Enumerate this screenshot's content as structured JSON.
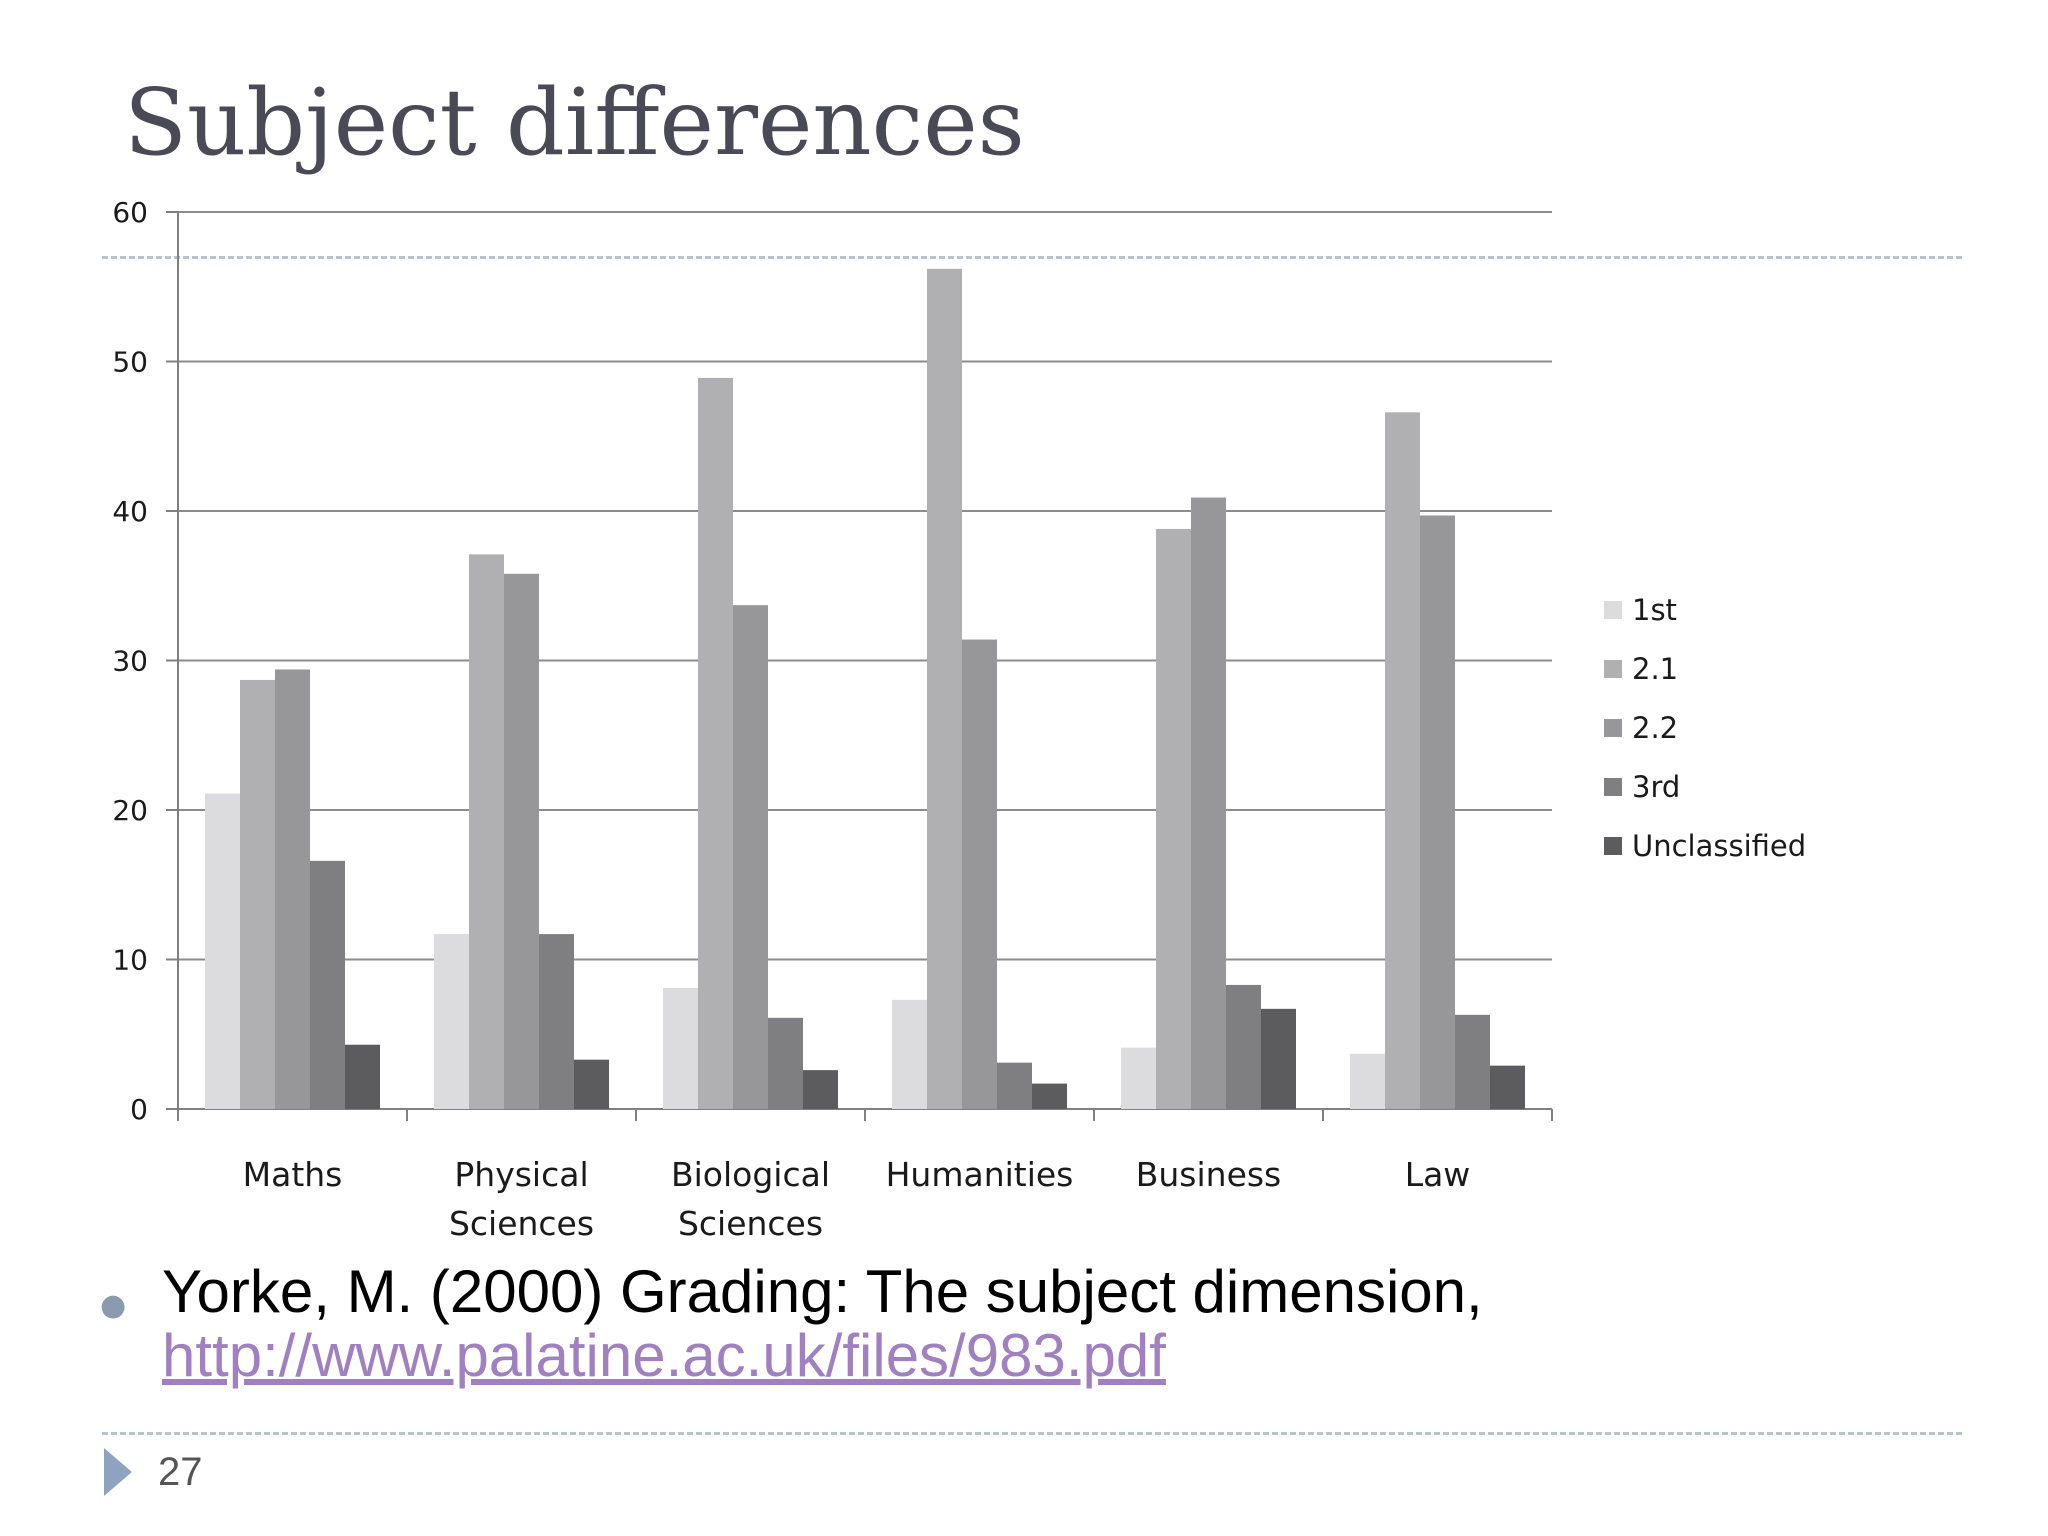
{
  "slide": {
    "title": "Subject differences",
    "page_number": "27"
  },
  "citation": {
    "text": "Yorke, M. (2000) Grading: The subject dimension,",
    "link": "http://www.palatine.ac.uk/files/983.pdf"
  },
  "colors": {
    "series": [
      "#dcdcde",
      "#b0b0b2",
      "#979799",
      "#7f7f81",
      "#5c5c5e"
    ],
    "gridline": "#8c8c8c",
    "axis": "#808080",
    "title": "#4a4a56",
    "link": "#a080c0",
    "divider": "#b7c3cf"
  },
  "chart_data": {
    "type": "bar",
    "title": "",
    "xlabel": "",
    "ylabel": "",
    "ylim": [
      0,
      60
    ],
    "yticks": [
      0,
      10,
      20,
      30,
      40,
      50,
      60
    ],
    "grid": true,
    "legend_position": "right",
    "categories": [
      [
        "Maths"
      ],
      [
        "Physical",
        "Sciences"
      ],
      [
        "Biological",
        "Sciences"
      ],
      [
        "Humanities"
      ],
      [
        "Business"
      ],
      [
        "Law"
      ]
    ],
    "series": [
      {
        "name": "1st",
        "values": [
          21.1,
          11.7,
          8.1,
          7.3,
          4.1,
          3.7
        ]
      },
      {
        "name": "2.1",
        "values": [
          28.7,
          37.1,
          48.9,
          56.2,
          38.8,
          46.6
        ]
      },
      {
        "name": "2.2",
        "values": [
          29.4,
          35.8,
          33.7,
          31.4,
          40.9,
          39.7
        ]
      },
      {
        "name": "3rd",
        "values": [
          16.6,
          11.7,
          6.1,
          3.1,
          8.3,
          6.3
        ]
      },
      {
        "name": "Unclassified",
        "values": [
          4.3,
          3.3,
          2.6,
          1.7,
          6.7,
          2.9
        ]
      }
    ]
  }
}
